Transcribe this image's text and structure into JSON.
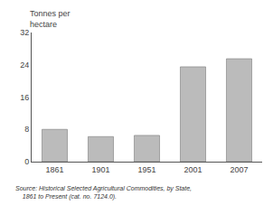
{
  "chart_data": {
    "type": "bar",
    "categories": [
      "1861",
      "1901",
      "1951",
      "2001",
      "2007"
    ],
    "values": [
      8.0,
      6.2,
      6.5,
      23.5,
      25.5
    ],
    "color": "#BBBBBB",
    "ylabel": "Tonnes per\nhectare",
    "annotations": [
      "Source: Historical Selected Agricultural Commodities, by State,\n    1861 to Present (cat. no. 7124.0)."
    ],
    "ylim": [
      0,
      32
    ],
    "yticks": [
      0,
      8,
      16,
      24,
      32
    ],
    "grid": false
  }
}
